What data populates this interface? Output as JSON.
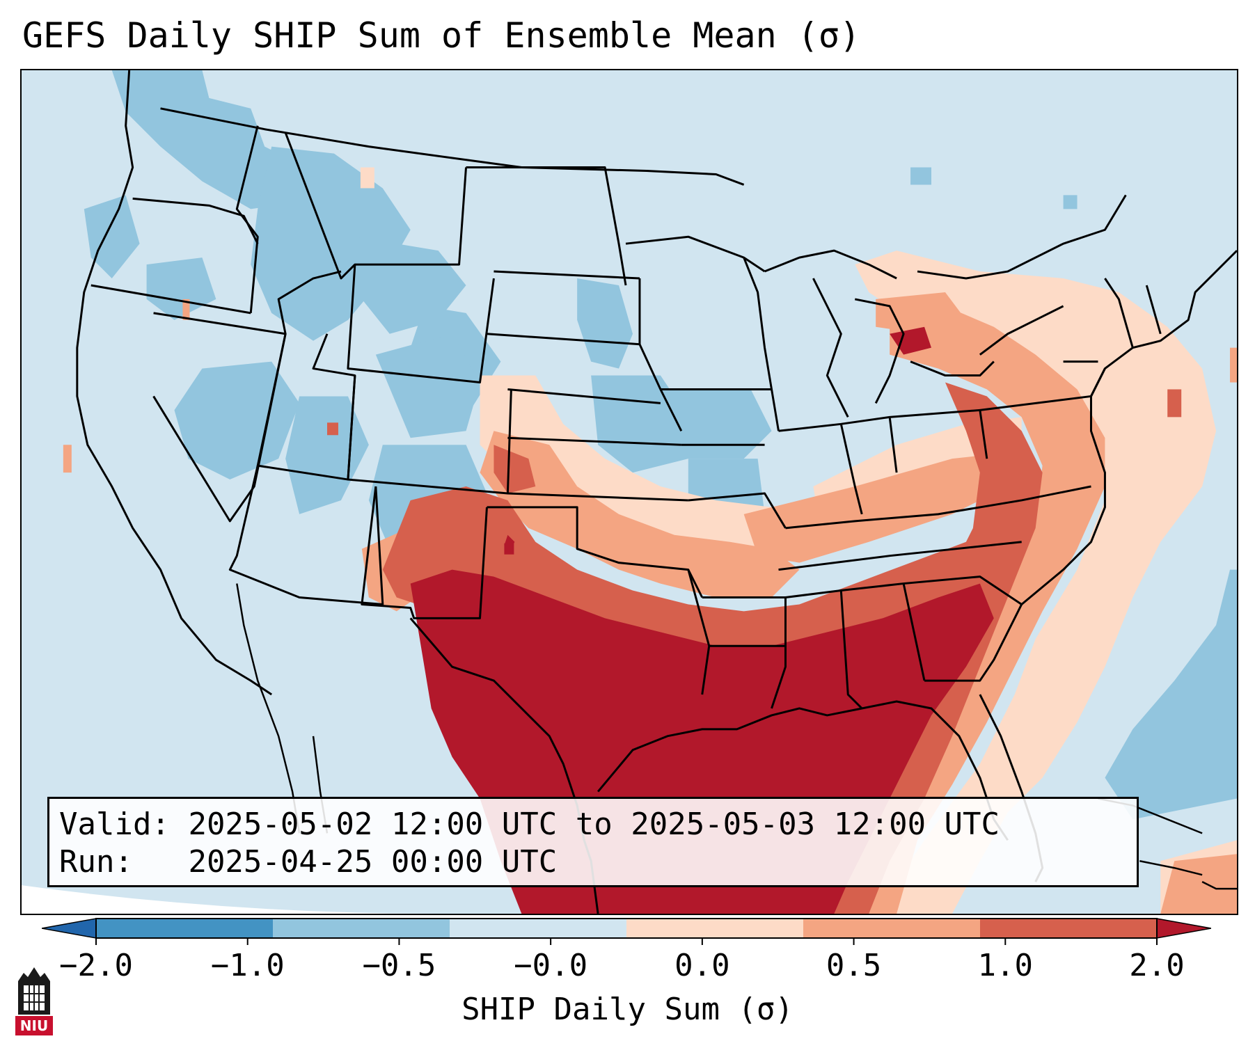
{
  "title": "GEFS Daily SHIP Sum of Ensemble Mean (σ)",
  "info": {
    "valid_label": "Valid:",
    "valid_value": "2025-05-02 12:00 UTC to 2025-05-03 12:00 UTC",
    "run_label": "Run:",
    "run_value": "2025-04-25 00:00 UTC"
  },
  "colorbar": {
    "label": "SHIP Daily Sum (σ)",
    "ticks": [
      "−2.0",
      "−1.0",
      "−0.5",
      "−0.0",
      "0.0",
      "0.5",
      "1.0",
      "2.0"
    ],
    "colors": [
      "#4393c3",
      "#92c5de",
      "#d1e5f0",
      "#fddbc7",
      "#f4a582",
      "#d6604d"
    ],
    "extend_low_color": "#2166ac",
    "extend_high_color": "#b2182b"
  },
  "map": {
    "background_color": "#d1e5f0",
    "region": "Contiguous United States",
    "features": [
      "state borders",
      "coastlines",
      "shaded SHIP anomaly field"
    ]
  },
  "logo": {
    "text": "NIU",
    "name": "niu-logo"
  }
}
